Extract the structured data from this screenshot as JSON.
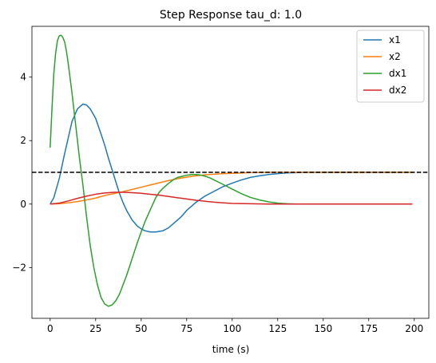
{
  "chart_data": {
    "type": "line",
    "title": "Step Response tau_d: 1.0",
    "xlabel": "time (s)",
    "ylabel": "",
    "xlim": [
      -10,
      208
    ],
    "ylim": [
      -3.6,
      5.6
    ],
    "xticks": [
      0,
      25,
      50,
      75,
      100,
      125,
      150,
      175,
      200
    ],
    "yticks": [
      -2,
      0,
      2,
      4
    ],
    "ytick_labels": [
      "−2",
      "0",
      "2",
      "4"
    ],
    "grid": false,
    "legend_position": "top-right",
    "reference_line": {
      "y": 1.0,
      "style": "dashed",
      "color": "#000000"
    },
    "series": [
      {
        "name": "x1",
        "color": "#1f77b4",
        "points": [
          [
            0,
            0
          ],
          [
            2,
            0.2
          ],
          [
            5,
            0.8
          ],
          [
            8,
            1.6
          ],
          [
            10,
            2.1
          ],
          [
            12,
            2.6
          ],
          [
            15,
            3.0
          ],
          [
            18,
            3.15
          ],
          [
            20,
            3.12
          ],
          [
            22,
            3.0
          ],
          [
            25,
            2.7
          ],
          [
            28,
            2.2
          ],
          [
            30,
            1.85
          ],
          [
            32,
            1.45
          ],
          [
            35,
            0.9
          ],
          [
            38,
            0.35
          ],
          [
            40,
            0.05
          ],
          [
            42,
            -0.2
          ],
          [
            45,
            -0.5
          ],
          [
            48,
            -0.7
          ],
          [
            50,
            -0.78
          ],
          [
            52,
            -0.84
          ],
          [
            55,
            -0.88
          ],
          [
            58,
            -0.88
          ],
          [
            60,
            -0.86
          ],
          [
            62,
            -0.84
          ],
          [
            65,
            -0.75
          ],
          [
            68,
            -0.6
          ],
          [
            70,
            -0.5
          ],
          [
            72,
            -0.4
          ],
          [
            75,
            -0.2
          ],
          [
            78,
            -0.05
          ],
          [
            80,
            0.05
          ],
          [
            85,
            0.25
          ],
          [
            90,
            0.4
          ],
          [
            95,
            0.55
          ],
          [
            100,
            0.66
          ],
          [
            105,
            0.76
          ],
          [
            110,
            0.84
          ],
          [
            115,
            0.89
          ],
          [
            120,
            0.93
          ],
          [
            125,
            0.96
          ],
          [
            130,
            0.98
          ],
          [
            135,
            0.99
          ],
          [
            140,
            1.0
          ],
          [
            150,
            1.0
          ],
          [
            160,
            1.0
          ],
          [
            170,
            1.0
          ],
          [
            180,
            1.0
          ],
          [
            190,
            1.0
          ],
          [
            199,
            1.0
          ]
        ]
      },
      {
        "name": "x2",
        "color": "#ff7f0e",
        "points": [
          [
            0,
            0
          ],
          [
            5,
            0.01
          ],
          [
            10,
            0.04
          ],
          [
            15,
            0.08
          ],
          [
            20,
            0.13
          ],
          [
            25,
            0.19
          ],
          [
            30,
            0.27
          ],
          [
            35,
            0.33
          ],
          [
            40,
            0.39
          ],
          [
            45,
            0.46
          ],
          [
            50,
            0.53
          ],
          [
            55,
            0.6
          ],
          [
            60,
            0.67
          ],
          [
            65,
            0.74
          ],
          [
            70,
            0.8
          ],
          [
            75,
            0.85
          ],
          [
            80,
            0.89
          ],
          [
            85,
            0.92
          ],
          [
            90,
            0.94
          ],
          [
            95,
            0.96
          ],
          [
            100,
            0.97
          ],
          [
            110,
            0.99
          ],
          [
            120,
            1.0
          ],
          [
            130,
            1.0
          ],
          [
            140,
            1.0
          ],
          [
            150,
            1.0
          ],
          [
            160,
            1.0
          ],
          [
            170,
            1.0
          ],
          [
            180,
            1.0
          ],
          [
            190,
            1.0
          ],
          [
            199,
            1.0
          ]
        ]
      },
      {
        "name": "dx1",
        "color": "#2ca02c",
        "points": [
          [
            0,
            1.78
          ],
          [
            1,
            3.0
          ],
          [
            2,
            4.1
          ],
          [
            3,
            4.75
          ],
          [
            4,
            5.15
          ],
          [
            5,
            5.3
          ],
          [
            6,
            5.32
          ],
          [
            7,
            5.25
          ],
          [
            8,
            5.1
          ],
          [
            9,
            4.8
          ],
          [
            10,
            4.4
          ],
          [
            12,
            3.5
          ],
          [
            14,
            2.5
          ],
          [
            16,
            1.5
          ],
          [
            18,
            0.6
          ],
          [
            20,
            -0.4
          ],
          [
            22,
            -1.3
          ],
          [
            24,
            -2.0
          ],
          [
            26,
            -2.55
          ],
          [
            28,
            -2.95
          ],
          [
            30,
            -3.15
          ],
          [
            32,
            -3.22
          ],
          [
            34,
            -3.18
          ],
          [
            36,
            -3.05
          ],
          [
            38,
            -2.85
          ],
          [
            40,
            -2.55
          ],
          [
            42,
            -2.25
          ],
          [
            44,
            -1.9
          ],
          [
            46,
            -1.55
          ],
          [
            48,
            -1.2
          ],
          [
            50,
            -0.88
          ],
          [
            52,
            -0.57
          ],
          [
            55,
            -0.18
          ],
          [
            58,
            0.2
          ],
          [
            60,
            0.38
          ],
          [
            62,
            0.5
          ],
          [
            65,
            0.65
          ],
          [
            68,
            0.78
          ],
          [
            70,
            0.84
          ],
          [
            73,
            0.88
          ],
          [
            75,
            0.91
          ],
          [
            78,
            0.93
          ],
          [
            80,
            0.93
          ],
          [
            82,
            0.92
          ],
          [
            85,
            0.88
          ],
          [
            88,
            0.82
          ],
          [
            90,
            0.76
          ],
          [
            95,
            0.62
          ],
          [
            100,
            0.47
          ],
          [
            105,
            0.33
          ],
          [
            110,
            0.21
          ],
          [
            115,
            0.13
          ],
          [
            120,
            0.07
          ],
          [
            125,
            0.03
          ],
          [
            130,
            0.01
          ],
          [
            135,
            0.0
          ],
          [
            140,
            0.0
          ],
          [
            150,
            0.0
          ],
          [
            160,
            0.0
          ],
          [
            170,
            0.0
          ],
          [
            180,
            0.0
          ],
          [
            190,
            0.0
          ],
          [
            199,
            0.0
          ]
        ]
      },
      {
        "name": "dx2",
        "color": "#d62728",
        "points": [
          [
            0,
            0
          ],
          [
            5,
            0.03
          ],
          [
            10,
            0.1
          ],
          [
            15,
            0.18
          ],
          [
            20,
            0.25
          ],
          [
            25,
            0.31
          ],
          [
            30,
            0.35
          ],
          [
            35,
            0.37
          ],
          [
            40,
            0.37
          ],
          [
            45,
            0.36
          ],
          [
            50,
            0.34
          ],
          [
            55,
            0.31
          ],
          [
            60,
            0.28
          ],
          [
            65,
            0.24
          ],
          [
            70,
            0.2
          ],
          [
            75,
            0.16
          ],
          [
            80,
            0.12
          ],
          [
            85,
            0.09
          ],
          [
            90,
            0.06
          ],
          [
            95,
            0.04
          ],
          [
            100,
            0.02
          ],
          [
            110,
            0.01
          ],
          [
            120,
            0.0
          ],
          [
            130,
            0.0
          ],
          [
            140,
            0.0
          ],
          [
            150,
            0.0
          ],
          [
            160,
            0.0
          ],
          [
            170,
            0.0
          ],
          [
            180,
            0.0
          ],
          [
            190,
            0.0
          ],
          [
            199,
            0.0
          ]
        ]
      }
    ]
  }
}
